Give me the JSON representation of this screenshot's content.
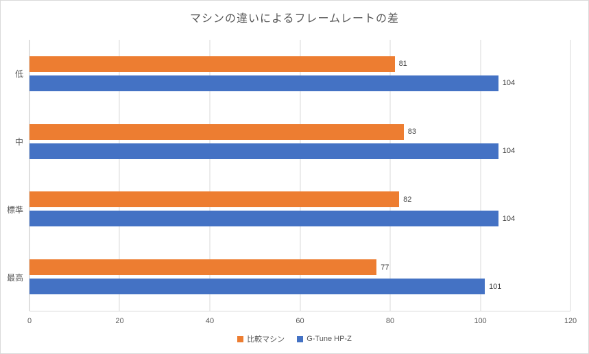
{
  "chart_data": {
    "type": "bar",
    "orientation": "horizontal",
    "title": "マシンの違いによるフレームレートの差",
    "categories": [
      "低",
      "中",
      "標準",
      "最高"
    ],
    "series": [
      {
        "name": "比較マシン",
        "color": "#ED7D31",
        "values": [
          81,
          83,
          82,
          77
        ]
      },
      {
        "name": "G-Tune HP-Z",
        "color": "#4472C4",
        "values": [
          104,
          104,
          104,
          101
        ]
      }
    ],
    "xlim": [
      0,
      120
    ],
    "xticks": [
      0,
      20,
      40,
      60,
      80,
      100,
      120
    ],
    "grid": true,
    "value_labels": true,
    "legend_position": "bottom",
    "colors": {
      "title_text": "#595959",
      "axis_text": "#595959",
      "value_label_text": "#404040",
      "gridline": "#D9D9D9"
    }
  }
}
